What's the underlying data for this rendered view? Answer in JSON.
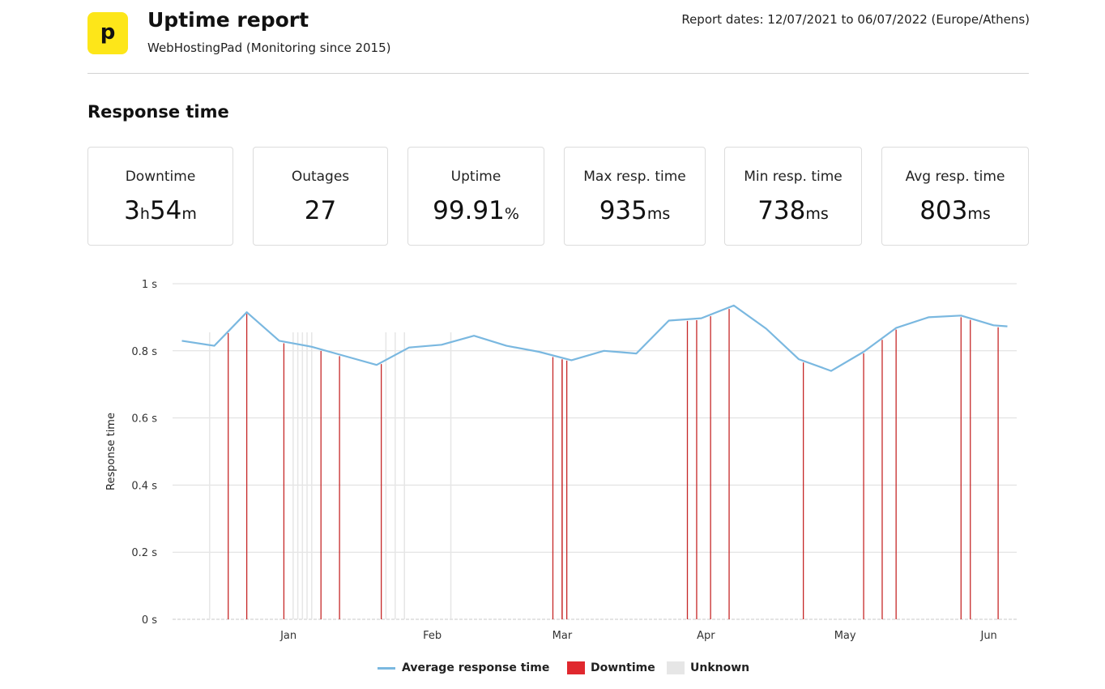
{
  "header": {
    "logo_letter": "p",
    "title": "Uptime report",
    "subtitle": "WebHostingPad (Monitoring since 2015)",
    "report_dates": "Report dates: 12/07/2021 to 06/07/2022 (Europe/Athens)"
  },
  "section_title": "Response time",
  "stats": [
    {
      "label": "Downtime",
      "value_parts": [
        "3",
        "h",
        "54",
        "m"
      ]
    },
    {
      "label": "Outages",
      "value_parts": [
        "27"
      ]
    },
    {
      "label": "Uptime",
      "value_parts": [
        "99.91",
        "%"
      ]
    },
    {
      "label": "Max resp. time",
      "value_parts": [
        "935",
        "ms"
      ]
    },
    {
      "label": "Min resp. time",
      "value_parts": [
        "738",
        "ms"
      ]
    },
    {
      "label": "Avg resp. time",
      "value_parts": [
        "803",
        "ms"
      ]
    }
  ],
  "colors": {
    "line": "#7ab8e0",
    "downtime": "#c62828",
    "downtime_legend": "#e0282e",
    "unknown": "#e6e6e6",
    "grid": "#dddddd",
    "logo": "#fde619"
  },
  "legend": {
    "average": "Average response time",
    "downtime": "Downtime",
    "unknown": "Unknown"
  },
  "chart_data": {
    "type": "line",
    "ylabel": "Response time",
    "y_unit": "s",
    "ylim": [
      0,
      1
    ],
    "yticks": [
      0,
      0.2,
      0.4,
      0.6,
      0.8,
      1
    ],
    "ytick_labels": [
      "0 s",
      "0.2 s",
      "0.4 s",
      "0.6 s",
      "0.8 s",
      "1 s"
    ],
    "xlim": [
      "2021-12-07",
      "2022-06-07"
    ],
    "xticks": [
      {
        "label": "Jan",
        "date": "2022-01-01"
      },
      {
        "label": "Feb",
        "date": "2022-02-01"
      },
      {
        "label": "Mar",
        "date": "2022-03-01"
      },
      {
        "label": "Apr",
        "date": "2022-04-01"
      },
      {
        "label": "May",
        "date": "2022-05-01"
      },
      {
        "label": "Jun",
        "date": "2022-06-01"
      }
    ],
    "series": [
      {
        "name": "Average response time",
        "points": [
          [
            "2021-12-09",
            0.83
          ],
          [
            "2021-12-16",
            0.815
          ],
          [
            "2021-12-23",
            0.915
          ],
          [
            "2021-12-30",
            0.83
          ],
          [
            "2022-01-06",
            0.812
          ],
          [
            "2022-01-13",
            0.785
          ],
          [
            "2022-01-20",
            0.758
          ],
          [
            "2022-01-27",
            0.81
          ],
          [
            "2022-02-03",
            0.818
          ],
          [
            "2022-02-10",
            0.845
          ],
          [
            "2022-02-17",
            0.815
          ],
          [
            "2022-02-24",
            0.797
          ],
          [
            "2022-03-03",
            0.772
          ],
          [
            "2022-03-10",
            0.8
          ],
          [
            "2022-03-17",
            0.792
          ],
          [
            "2022-03-24",
            0.89
          ],
          [
            "2022-03-31",
            0.897
          ],
          [
            "2022-04-07",
            0.935
          ],
          [
            "2022-04-14",
            0.866
          ],
          [
            "2022-04-21",
            0.775
          ],
          [
            "2022-04-28",
            0.74
          ],
          [
            "2022-05-05",
            0.797
          ],
          [
            "2022-05-12",
            0.868
          ],
          [
            "2022-05-19",
            0.9
          ],
          [
            "2022-05-26",
            0.905
          ],
          [
            "2022-06-02",
            0.876
          ],
          [
            "2022-06-05",
            0.873
          ]
        ]
      }
    ],
    "downtime_dates": [
      "2021-12-19",
      "2021-12-23",
      "2021-12-31",
      "2022-01-08",
      "2022-01-12",
      "2022-01-21",
      "2022-02-27",
      "2022-03-01",
      "2022-03-01",
      "2022-03-02",
      "2022-03-28",
      "2022-03-30",
      "2022-04-02",
      "2022-04-06",
      "2022-04-22",
      "2022-05-05",
      "2022-05-09",
      "2022-05-12",
      "2022-05-26",
      "2022-05-28",
      "2022-06-03"
    ],
    "unknown_dates": [
      "2021-12-15",
      "2022-01-02",
      "2022-01-03",
      "2022-01-04",
      "2022-01-05",
      "2022-01-06",
      "2022-01-22",
      "2022-01-24",
      "2022-01-26",
      "2022-02-05"
    ]
  }
}
